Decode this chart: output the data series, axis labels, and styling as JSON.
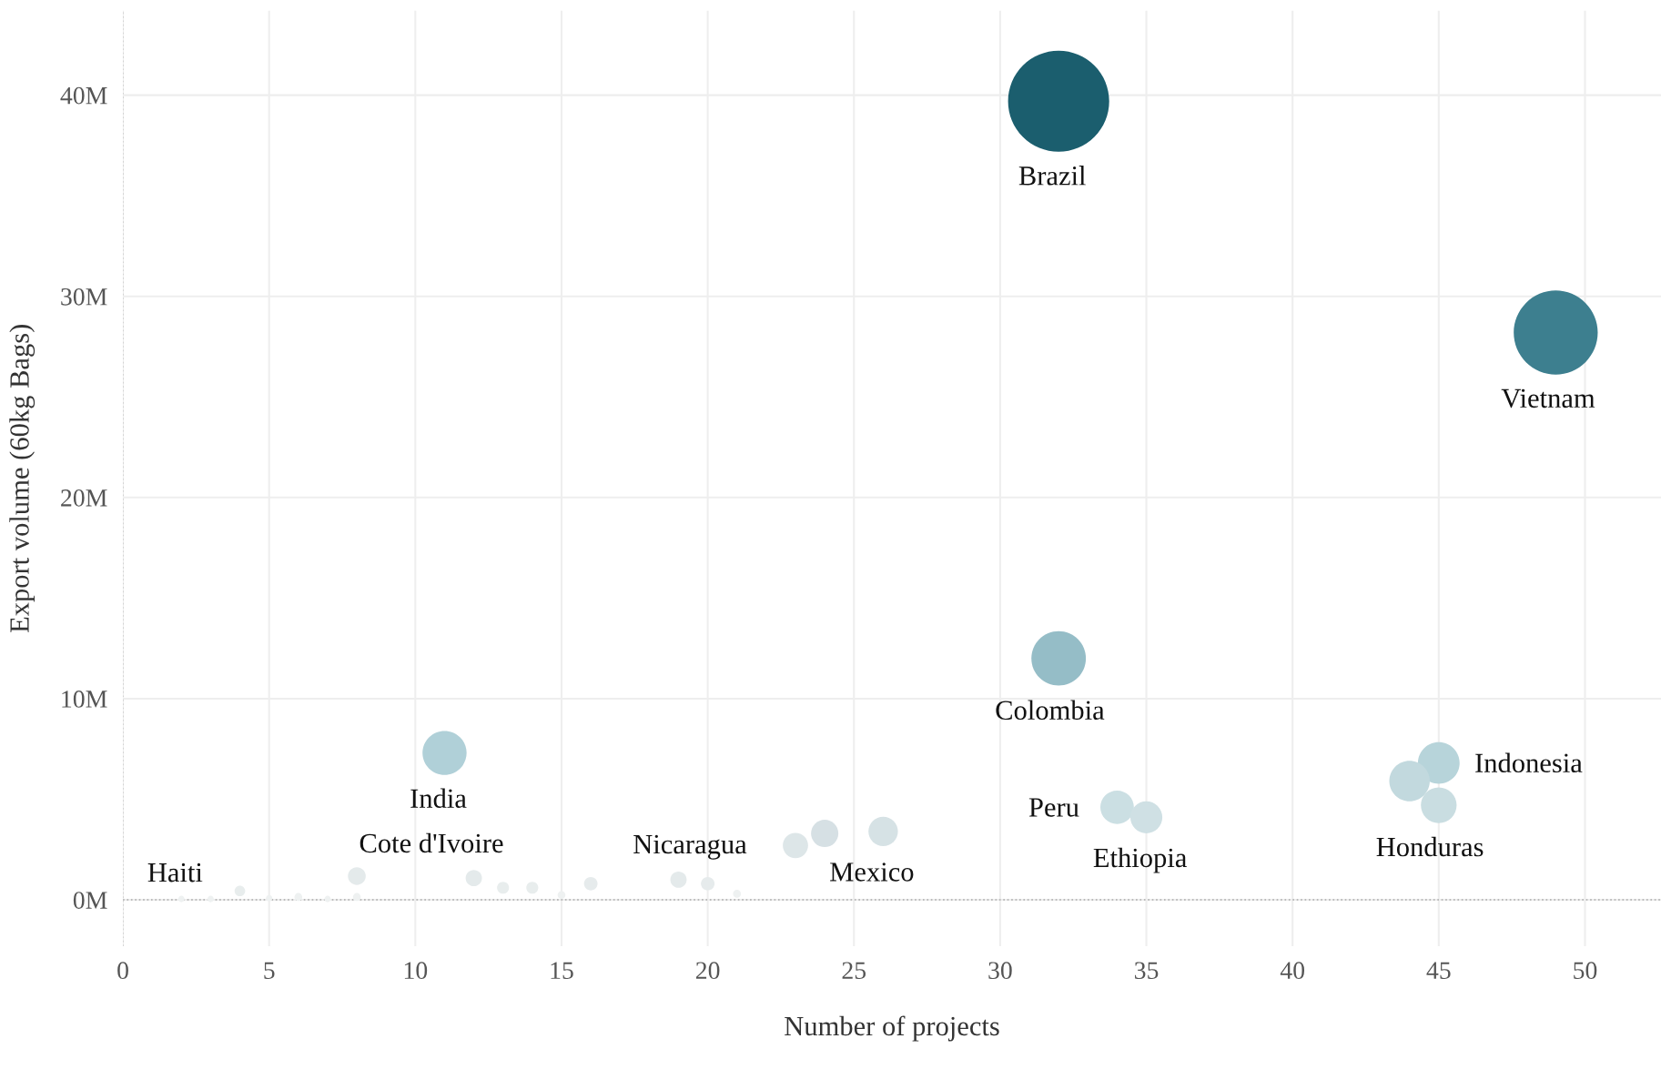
{
  "chart_data": {
    "type": "bubble",
    "xlabel": "Number of projects",
    "ylabel": "Export volume (60kg Bags)",
    "xlim": [
      0,
      52.6
    ],
    "ylim": [
      -2.3,
      44.2
    ],
    "xticks": [
      0,
      5,
      10,
      15,
      20,
      25,
      30,
      35,
      40,
      45,
      50
    ],
    "yticks": [
      {
        "value": 0,
        "label": "0M"
      },
      {
        "value": 10,
        "label": "10M"
      },
      {
        "value": 20,
        "label": "20M"
      },
      {
        "value": 30,
        "label": "30M"
      },
      {
        "value": 40,
        "label": "40M"
      }
    ],
    "grid": true,
    "legend": false,
    "ref_lines": [
      {
        "axis": "y",
        "value": 0,
        "color": "#aaaaaa",
        "line_style": "dotted"
      },
      {
        "axis": "x",
        "value": 0,
        "color": "#cccccc",
        "line_style": "dotted"
      }
    ],
    "series": [
      {
        "x": [
          32,
          49,
          32,
          11,
          45,
          44,
          45,
          34,
          35,
          26,
          24,
          23,
          2,
          3,
          4,
          5,
          6,
          7,
          8,
          8,
          12,
          13,
          14,
          15,
          16,
          19,
          20,
          21
        ],
        "values": [
          39.7,
          28.2,
          12.0,
          7.3,
          6.8,
          5.9,
          4.7,
          4.6,
          4.1,
          3.4,
          3.3,
          2.7,
          0.04,
          0.04,
          0.44,
          0.08,
          0.14,
          0.04,
          1.18,
          0.14,
          1.08,
          0.6,
          0.6,
          0.24,
          0.8,
          1.0,
          0.8,
          0.3
        ],
        "sizes": [
          1,
          0.69,
          0.29,
          0.19,
          0.17,
          0.16,
          0.125,
          0.11,
          0.1,
          0.085,
          0.073,
          0.0625,
          0.004,
          0.004,
          0.011,
          0.004,
          0.006,
          0.004,
          0.031,
          0.006,
          0.026,
          0.014,
          0.014,
          0.006,
          0.018,
          0.026,
          0.018,
          0.006
        ],
        "colors": [
          "#1b5e6e",
          "#3d7f8f",
          "#95bdc7",
          "#b0d0d8",
          "#b7d4da",
          "#c2d9de",
          "#c9dde1",
          "#cbdfe3",
          "#cfe0e4",
          "#d6e2e5",
          "#d6e0e4",
          "#dde6e8",
          "#eef1f1",
          "#eef1f1",
          "#e8eded",
          "#eef1f1",
          "#eef1f1",
          "#eef1f1",
          "#e4eaeb",
          "#eef1f1",
          "#e4eaeb",
          "#e8eded",
          "#e8eded",
          "#eef1f1",
          "#e6ebec",
          "#e4eaeb",
          "#e6ebec",
          "#eef1f1"
        ]
      }
    ],
    "annotations": [
      {
        "text": "Brazil",
        "x": 32,
        "y": 39.7
      },
      {
        "text": "Vietnam",
        "x": 49,
        "y": 28.2
      },
      {
        "text": "Colombia",
        "x": 32,
        "y": 12.0
      },
      {
        "text": "India",
        "x": 11,
        "y": 7.3
      },
      {
        "text": "Indonesia",
        "x": 45,
        "y": 6.8
      },
      {
        "text": "Honduras",
        "x": 45,
        "y": 4.7
      },
      {
        "text": "Peru",
        "x": 34,
        "y": 4.6
      },
      {
        "text": "Ethiopia",
        "x": 35,
        "y": 4.1
      },
      {
        "text": "Mexico",
        "x": 26,
        "y": 3.4
      },
      {
        "text": "Nicaragua",
        "x": 19,
        "y": 1.0
      },
      {
        "text": "Cote d'Ivoire",
        "x": 8,
        "y": 1.18
      },
      {
        "text": "Haiti",
        "x": 2,
        "y": 0.04
      }
    ]
  }
}
